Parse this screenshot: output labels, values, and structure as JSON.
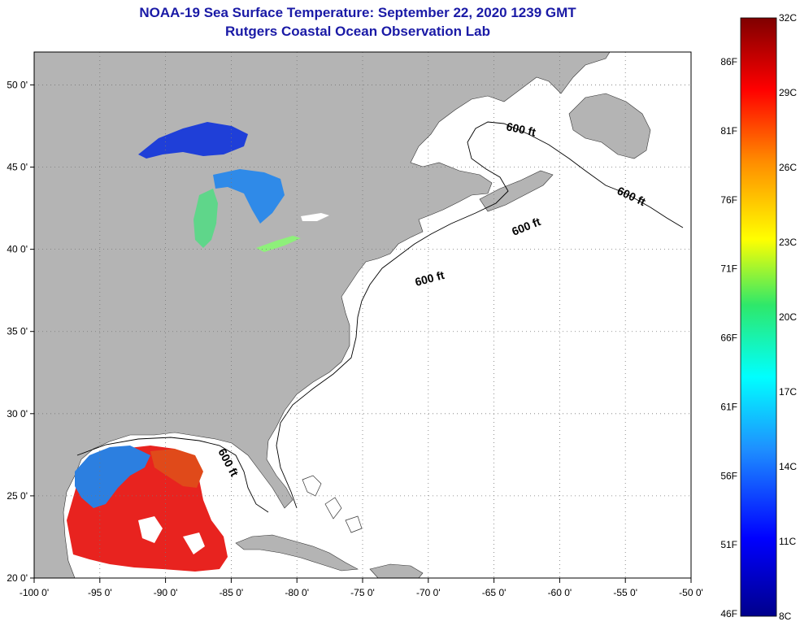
{
  "title": {
    "line1": "NOAA-19 Sea Surface Temperature:  September 22, 2020 1239 GMT",
    "line2": "Rutgers Coastal Ocean Observation Lab"
  },
  "map": {
    "lon_range": [
      -100,
      -50
    ],
    "lat_range": [
      20,
      52
    ],
    "x_ticks": [
      {
        "value": -100,
        "label": "-100 0'"
      },
      {
        "value": -95,
        "label": "-95 0'"
      },
      {
        "value": -90,
        "label": "-90 0'"
      },
      {
        "value": -85,
        "label": "-85 0'"
      },
      {
        "value": -80,
        "label": "-80 0'"
      },
      {
        "value": -75,
        "label": "-75 0'"
      },
      {
        "value": -70,
        "label": "-70 0'"
      },
      {
        "value": -65,
        "label": "-65 0'"
      },
      {
        "value": -60,
        "label": "-60 0'"
      },
      {
        "value": -55,
        "label": "-55 0'"
      },
      {
        "value": -50,
        "label": "-50 0'"
      }
    ],
    "y_ticks": [
      {
        "value": 20,
        "label": "20 0'"
      },
      {
        "value": 25,
        "label": "25 0'"
      },
      {
        "value": 30,
        "label": "30 0'"
      },
      {
        "value": 35,
        "label": "35 0'"
      },
      {
        "value": 40,
        "label": "40 0'"
      },
      {
        "value": 45,
        "label": "45 0'"
      },
      {
        "value": 50,
        "label": "50 0'"
      }
    ],
    "isobath_labels": [
      "600 ft",
      "600 ft",
      "600 ft",
      "600 ft",
      "600 ft"
    ],
    "colors": {
      "land": "#b4b4b4",
      "ocean": "#ffffff",
      "grid": "#777777"
    }
  },
  "colorbar": {
    "celsius_labels": [
      "32C",
      "29C",
      "26C",
      "23C",
      "20C",
      "17C",
      "14C",
      "11C",
      "8C"
    ],
    "fahrenheit_labels": [
      "86F",
      "81F",
      "76F",
      "71F",
      "66F",
      "61F",
      "56F",
      "51F",
      "46F"
    ],
    "colors": [
      "#7f0000",
      "#ff0000",
      "#ff8c00",
      "#ffff00",
      "#2ee86a",
      "#00ffff",
      "#1e90ff",
      "#0000ff",
      "#00008b"
    ]
  }
}
